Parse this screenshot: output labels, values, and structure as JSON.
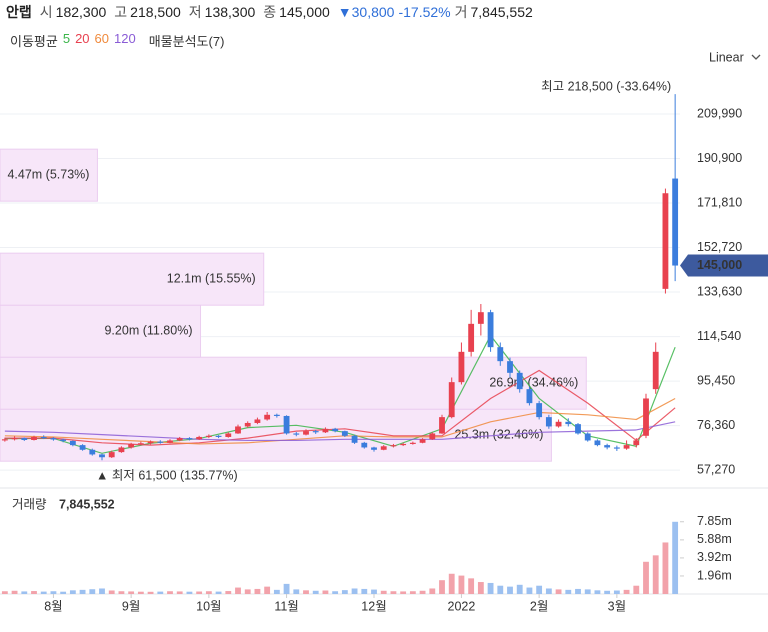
{
  "header": {
    "name": "안랩",
    "items": [
      {
        "label": "시",
        "value": "182,300"
      },
      {
        "label": "고",
        "value": "218,500"
      },
      {
        "label": "저",
        "value": "138,300"
      },
      {
        "label": "종",
        "value": "145,000"
      }
    ],
    "change": "▼30,800",
    "change_rate": "-17.52%",
    "volume_label": "거",
    "volume": "7,845,552"
  },
  "chart_data": {
    "type": "candlestick",
    "scale": "Linear",
    "grid": true,
    "categories": [
      null,
      null,
      null,
      null,
      null,
      "8월",
      null,
      null,
      null,
      null,
      null,
      null,
      null,
      "9월",
      null,
      null,
      null,
      null,
      null,
      null,
      null,
      "10월",
      null,
      null,
      null,
      null,
      null,
      null,
      null,
      "11월",
      null,
      null,
      null,
      null,
      null,
      null,
      null,
      null,
      "12월",
      null,
      null,
      null,
      null,
      null,
      null,
      null,
      null,
      "2022",
      null,
      null,
      null,
      null,
      null,
      null,
      null,
      "2월",
      null,
      null,
      null,
      null,
      null,
      null,
      null,
      "3월",
      null,
      null,
      null,
      null,
      null,
      null
    ],
    "open": [
      70000,
      70500,
      71000,
      70200,
      71500,
      71000,
      70400,
      69800,
      68000,
      66000,
      64000,
      62800,
      65000,
      67000,
      68500,
      68800,
      69500,
      69000,
      70000,
      71000,
      70500,
      71500,
      72000,
      71500,
      73000,
      76000,
      77500,
      79000,
      81000,
      80500,
      73000,
      72500,
      74000,
      73500,
      75000,
      74000,
      72000,
      69000,
      67000,
      66000,
      67500,
      68000,
      68500,
      69000,
      70500,
      73000,
      80000,
      95000,
      108000,
      120000,
      125000,
      110000,
      104000,
      99000,
      92000,
      86000,
      80000,
      76000,
      78000,
      77000,
      73000,
      70000,
      68000,
      67000,
      66500,
      68000,
      72000,
      92000,
      135000,
      182300
    ],
    "high": [
      71200,
      71800,
      71300,
      72000,
      72200,
      71400,
      70800,
      70000,
      68400,
      66500,
      64300,
      65600,
      67500,
      69000,
      69500,
      70000,
      70100,
      70500,
      71500,
      71400,
      72000,
      72600,
      72300,
      73500,
      76800,
      78200,
      79800,
      82200,
      81500,
      80800,
      73600,
      74800,
      74500,
      75600,
      75400,
      74200,
      72300,
      69400,
      67300,
      68000,
      68500,
      69000,
      69500,
      71000,
      73500,
      81000,
      97000,
      112000,
      126000,
      128500,
      126000,
      112000,
      105500,
      100000,
      93000,
      87000,
      81000,
      79000,
      79500,
      77500,
      73500,
      70500,
      68600,
      67800,
      70000,
      71000,
      90000,
      112000,
      178000,
      218500
    ],
    "low": [
      69500,
      70000,
      69800,
      70000,
      70600,
      69900,
      69200,
      67500,
      65600,
      63500,
      61500,
      62500,
      64700,
      66500,
      68000,
      68300,
      68600,
      68800,
      69700,
      70000,
      70200,
      71000,
      71000,
      71200,
      72800,
      75500,
      77000,
      78500,
      79800,
      72500,
      71800,
      72200,
      72800,
      73200,
      73500,
      71500,
      68500,
      66500,
      65200,
      65800,
      67000,
      67600,
      68200,
      68800,
      70200,
      72800,
      79500,
      94000,
      106000,
      115000,
      108000,
      102000,
      97000,
      90500,
      85000,
      79000,
      75000,
      75500,
      76000,
      72500,
      69500,
      67500,
      66200,
      65500,
      66000,
      67000,
      71000,
      90000,
      133000,
      138300
    ],
    "close": [
      70500,
      71000,
      70200,
      71500,
      71000,
      70400,
      69800,
      68000,
      66000,
      64000,
      62800,
      65000,
      67000,
      68500,
      68800,
      69500,
      69000,
      70000,
      71000,
      70500,
      71500,
      72000,
      71500,
      73000,
      76000,
      77500,
      79000,
      81000,
      80500,
      73000,
      72500,
      74000,
      73500,
      75000,
      74000,
      72000,
      69000,
      67000,
      66000,
      67500,
      68000,
      68500,
      69000,
      70500,
      73000,
      80000,
      95000,
      108000,
      120000,
      125000,
      110000,
      104000,
      99000,
      92000,
      86000,
      80000,
      76000,
      78000,
      77000,
      73000,
      70000,
      68000,
      67000,
      66500,
      68000,
      70000,
      88000,
      108000,
      176000,
      145000
    ],
    "colors": {
      "up": "#e8414f",
      "down": "#3b7ddd"
    },
    "ylim": [
      50900,
      229700
    ],
    "yticks": [
      {
        "value": 57270,
        "label": "57,270"
      },
      {
        "value": 76360,
        "label": "76,360"
      },
      {
        "value": 95450,
        "label": "95,450"
      },
      {
        "value": 114540,
        "label": "114,540"
      },
      {
        "value": 133630,
        "label": "133,630"
      },
      {
        "value": 152720,
        "label": "152,720"
      },
      {
        "value": 171810,
        "label": "171,810"
      },
      {
        "value": 190900,
        "label": "190,900"
      },
      {
        "value": 209990,
        "label": "209,990"
      }
    ],
    "max_label": "최고 218,500 (-33.64%)",
    "min_label": "▲ 최저 61,500 (135.77%)",
    "last_price_label": "145,000",
    "moving_average_title": "이동평균",
    "moving_averages": {
      "x": [
        0,
        5,
        10,
        15,
        20,
        25,
        30,
        35,
        40,
        45,
        50,
        55,
        60,
        65,
        69
      ],
      "series": [
        {
          "name": "5",
          "color": "#3bb54a",
          "values": [
            70800,
            70900,
            64500,
            68800,
            70800,
            75500,
            76500,
            73500,
            67500,
            75000,
            115000,
            88000,
            72000,
            67500,
            110000
          ]
        },
        {
          "name": "20",
          "color": "#e8414f",
          "values": [
            71000,
            71000,
            69000,
            68000,
            69000,
            71000,
            74000,
            75000,
            72000,
            72000,
            88000,
            100000,
            86000,
            70000,
            84000
          ]
        },
        {
          "name": "60",
          "color": "#f08a3c",
          "values": [
            72000,
            71500,
            70500,
            69500,
            68500,
            69000,
            70500,
            72000,
            71500,
            71500,
            78000,
            82000,
            81000,
            79000,
            88000
          ]
        },
        {
          "name": "120",
          "color": "#8a5cd6",
          "values": [
            74000,
            73500,
            72500,
            71500,
            70500,
            70000,
            70000,
            70500,
            70500,
            70500,
            72000,
            73500,
            74000,
            74500,
            78000
          ]
        }
      ]
    },
    "volume_profile": {
      "title": "매물분석도(7)",
      "color": "#f7e6f9",
      "bins": [
        61100,
        83400,
        105700,
        128000,
        150300,
        172600,
        194900,
        217200
      ],
      "values": [
        25.3,
        26.9,
        9.2,
        12.1,
        0,
        4.47,
        0
      ],
      "value_labels": [
        "25.3m (32.46%)",
        "26.9m (34.46%)",
        "9.20m (11.80%)",
        "12.1m (15.55%)",
        null,
        "4.47m (5.73%)",
        null
      ],
      "xlim": [
        0,
        31.2
      ]
    },
    "volume": {
      "title": "거래량",
      "total": "7,845,552",
      "values": [
        300000,
        350000,
        280000,
        320000,
        260000,
        300000,
        250000,
        400000,
        450000,
        520000,
        600000,
        380000,
        300000,
        280000,
        250000,
        240000,
        260000,
        300000,
        280000,
        250000,
        270000,
        300000,
        260000,
        320000,
        700000,
        500000,
        550000,
        800000,
        450000,
        1100000,
        500000,
        400000,
        350000,
        380000,
        300000,
        420000,
        600000,
        550000,
        480000,
        350000,
        300000,
        280000,
        300000,
        350000,
        600000,
        1500000,
        2200000,
        2000000,
        1700000,
        1300000,
        1200000,
        900000,
        800000,
        1000000,
        700000,
        900000,
        600000,
        500000,
        450000,
        550000,
        500000,
        400000,
        350000,
        380000,
        450000,
        900000,
        3500000,
        4200000,
        5600000,
        7845552
      ],
      "colors": {
        "up": "#f2a2aa",
        "down": "#9cc0f0"
      },
      "ylim": [
        0,
        11300000
      ],
      "yticks": [
        {
          "value": 1960000,
          "label": "1.96m"
        },
        {
          "value": 3920000,
          "label": "3.92m"
        },
        {
          "value": 5880000,
          "label": "5.88m"
        },
        {
          "value": 7850000,
          "label": "7.85m"
        }
      ]
    }
  }
}
